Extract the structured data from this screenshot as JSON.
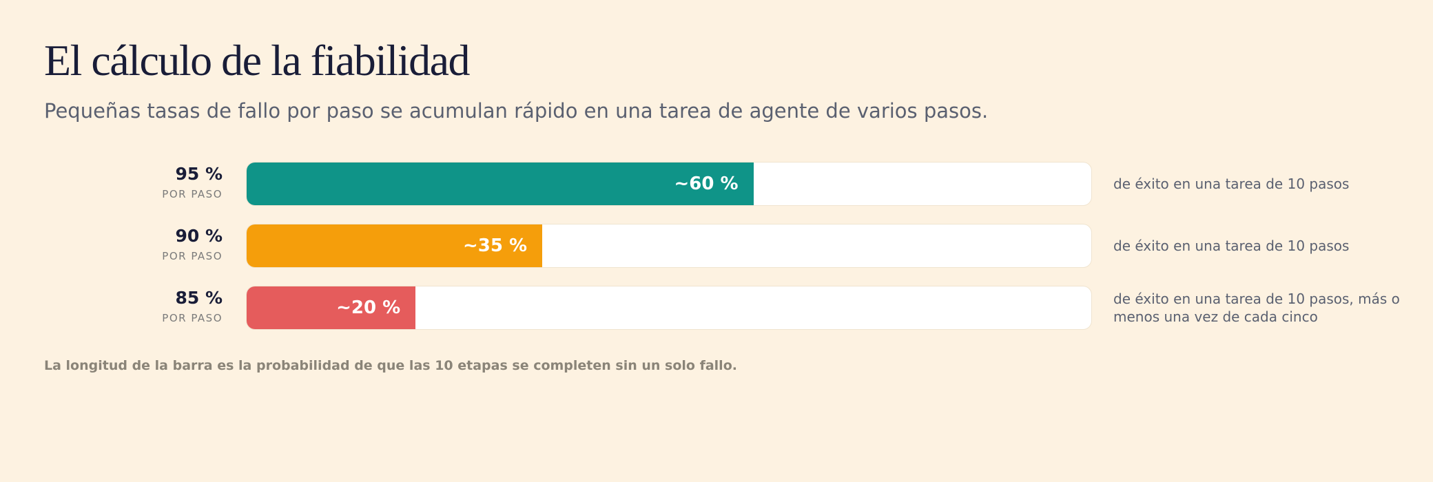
{
  "title": "El cálculo de la fiabilidad",
  "subtitle": "Pequeñas tasas de fallo por paso se acumulan rápido en una tarea de agente de varios pasos.",
  "footnote": "La longitud de la barra es la probabilidad de que las 10 etapas se completen sin un solo fallo.",
  "chart_data": {
    "type": "bar",
    "orientation": "horizontal",
    "xlim": [
      0,
      100
    ],
    "categories": [
      "95 %",
      "90 %",
      "85 %"
    ],
    "category_sublabel": "POR PASO",
    "values": [
      60,
      35,
      20
    ],
    "value_labels": [
      "~60 %",
      "~35 %",
      "~20 %"
    ],
    "colors": [
      "#0f9488",
      "#f59e0b",
      "#e55c5c"
    ],
    "notes": [
      "de éxito en una tarea de 10 pasos",
      "de éxito en una tarea de 10 pasos",
      "de éxito en una tarea de 10 pasos, más o menos una vez de cada cinco"
    ]
  }
}
